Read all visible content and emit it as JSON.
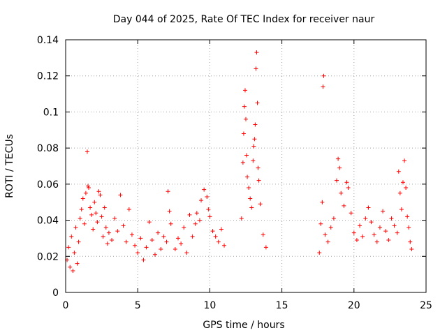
{
  "chart_data": {
    "type": "scatter",
    "title": "Day 044 of 2025, Rate Of TEC Index for receiver naur",
    "xlabel": "GPS time / hours",
    "ylabel": "ROTI / TECUs",
    "xlim": [
      0,
      25
    ],
    "ylim": [
      0,
      0.14
    ],
    "xticks": [
      0,
      5,
      10,
      15,
      20,
      25
    ],
    "xtick_labels": [
      "0",
      "5",
      "10",
      "15",
      "20",
      "25"
    ],
    "yticks": [
      0,
      0.02,
      0.04,
      0.06,
      0.08,
      0.1,
      0.12,
      0.14
    ],
    "ytick_labels": [
      "0",
      "0.02",
      "0.04",
      "0.06",
      "0.08",
      "0.1",
      "0.12",
      "0.14"
    ],
    "grid": true,
    "marker": "+",
    "color": "#ff0000",
    "series": [
      {
        "name": "ROTI",
        "points": [
          [
            0.1,
            0.018
          ],
          [
            0.2,
            0.025
          ],
          [
            0.3,
            0.014
          ],
          [
            0.4,
            0.031
          ],
          [
            0.5,
            0.012
          ],
          [
            0.6,
            0.022
          ],
          [
            0.7,
            0.036
          ],
          [
            0.8,
            0.016
          ],
          [
            0.9,
            0.028
          ],
          [
            1.0,
            0.041
          ],
          [
            1.1,
            0.046
          ],
          [
            1.2,
            0.052
          ],
          [
            1.3,
            0.038
          ],
          [
            1.4,
            0.055
          ],
          [
            1.5,
            0.078
          ],
          [
            1.55,
            0.059
          ],
          [
            1.6,
            0.058
          ],
          [
            1.7,
            0.047
          ],
          [
            1.8,
            0.043
          ],
          [
            1.9,
            0.035
          ],
          [
            2.0,
            0.05
          ],
          [
            2.1,
            0.044
          ],
          [
            2.2,
            0.039
          ],
          [
            2.3,
            0.056
          ],
          [
            2.4,
            0.054
          ],
          [
            2.5,
            0.042
          ],
          [
            2.6,
            0.031
          ],
          [
            2.7,
            0.047
          ],
          [
            2.8,
            0.036
          ],
          [
            2.9,
            0.027
          ],
          [
            3.0,
            0.033
          ],
          [
            3.2,
            0.029
          ],
          [
            3.4,
            0.041
          ],
          [
            3.6,
            0.034
          ],
          [
            3.8,
            0.054
          ],
          [
            4.0,
            0.037
          ],
          [
            4.2,
            0.028
          ],
          [
            4.4,
            0.046
          ],
          [
            4.6,
            0.032
          ],
          [
            4.8,
            0.026
          ],
          [
            5.0,
            0.022
          ],
          [
            5.2,
            0.03
          ],
          [
            5.4,
            0.018
          ],
          [
            5.6,
            0.025
          ],
          [
            5.8,
            0.039
          ],
          [
            6.0,
            0.029
          ],
          [
            6.2,
            0.021
          ],
          [
            6.4,
            0.033
          ],
          [
            6.6,
            0.024
          ],
          [
            6.8,
            0.031
          ],
          [
            7.0,
            0.028
          ],
          [
            7.1,
            0.056
          ],
          [
            7.2,
            0.045
          ],
          [
            7.3,
            0.038
          ],
          [
            7.6,
            0.024
          ],
          [
            7.8,
            0.03
          ],
          [
            8.0,
            0.027
          ],
          [
            8.2,
            0.036
          ],
          [
            8.4,
            0.022
          ],
          [
            8.6,
            0.043
          ],
          [
            8.8,
            0.031
          ],
          [
            9.0,
            0.038
          ],
          [
            9.1,
            0.044
          ],
          [
            9.3,
            0.04
          ],
          [
            9.4,
            0.051
          ],
          [
            9.6,
            0.057
          ],
          [
            9.8,
            0.053
          ],
          [
            9.9,
            0.046
          ],
          [
            10.0,
            0.042
          ],
          [
            10.2,
            0.034
          ],
          [
            10.4,
            0.031
          ],
          [
            10.6,
            0.028
          ],
          [
            10.8,
            0.035
          ],
          [
            11.0,
            0.026
          ],
          [
            12.2,
            0.041
          ],
          [
            12.3,
            0.072
          ],
          [
            12.35,
            0.088
          ],
          [
            12.4,
            0.103
          ],
          [
            12.45,
            0.112
          ],
          [
            12.5,
            0.096
          ],
          [
            12.55,
            0.076
          ],
          [
            12.6,
            0.064
          ],
          [
            12.7,
            0.058
          ],
          [
            12.8,
            0.052
          ],
          [
            12.9,
            0.047
          ],
          [
            13.0,
            0.073
          ],
          [
            13.05,
            0.081
          ],
          [
            13.1,
            0.085
          ],
          [
            13.15,
            0.093
          ],
          [
            13.2,
            0.124
          ],
          [
            13.25,
            0.133
          ],
          [
            13.3,
            0.105
          ],
          [
            13.35,
            0.069
          ],
          [
            13.4,
            0.062
          ],
          [
            13.5,
            0.049
          ],
          [
            13.7,
            0.032
          ],
          [
            13.9,
            0.025
          ],
          [
            17.6,
            0.022
          ],
          [
            17.7,
            0.038
          ],
          [
            17.8,
            0.05
          ],
          [
            17.85,
            0.114
          ],
          [
            17.9,
            0.12
          ],
          [
            18.0,
            0.032
          ],
          [
            18.2,
            0.028
          ],
          [
            18.4,
            0.036
          ],
          [
            18.6,
            0.041
          ],
          [
            18.8,
            0.062
          ],
          [
            18.9,
            0.074
          ],
          [
            19.0,
            0.069
          ],
          [
            19.1,
            0.055
          ],
          [
            19.3,
            0.048
          ],
          [
            19.5,
            0.061
          ],
          [
            19.6,
            0.058
          ],
          [
            19.8,
            0.044
          ],
          [
            20.0,
            0.033
          ],
          [
            20.2,
            0.029
          ],
          [
            20.4,
            0.037
          ],
          [
            20.6,
            0.031
          ],
          [
            20.8,
            0.041
          ],
          [
            21.0,
            0.047
          ],
          [
            21.2,
            0.039
          ],
          [
            21.4,
            0.032
          ],
          [
            21.6,
            0.028
          ],
          [
            21.8,
            0.036
          ],
          [
            22.0,
            0.045
          ],
          [
            22.2,
            0.034
          ],
          [
            22.4,
            0.029
          ],
          [
            22.6,
            0.041
          ],
          [
            22.8,
            0.037
          ],
          [
            23.0,
            0.033
          ],
          [
            23.1,
            0.067
          ],
          [
            23.2,
            0.055
          ],
          [
            23.3,
            0.046
          ],
          [
            23.4,
            0.061
          ],
          [
            23.5,
            0.073
          ],
          [
            23.6,
            0.058
          ],
          [
            23.7,
            0.042
          ],
          [
            23.8,
            0.036
          ],
          [
            23.9,
            0.028
          ],
          [
            24.0,
            0.024
          ]
        ]
      }
    ]
  }
}
